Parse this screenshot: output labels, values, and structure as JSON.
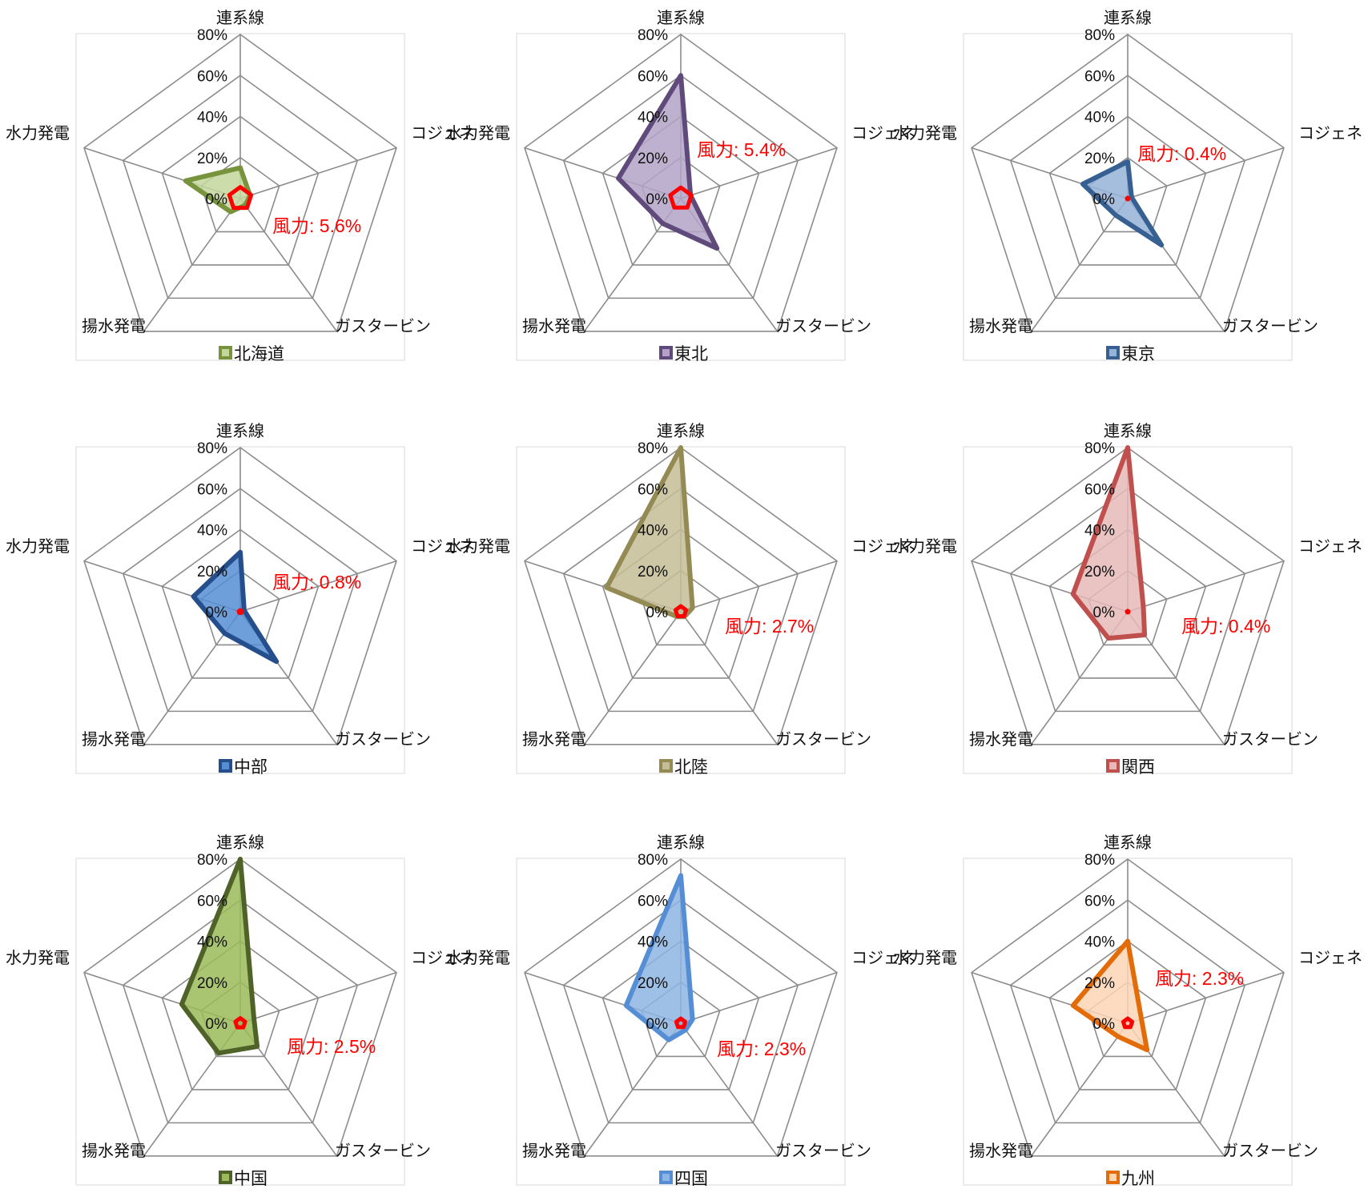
{
  "chart_data": [
    {
      "type": "radar",
      "axes": [
        "連系線",
        "コジェネ",
        "ガスタービン",
        "揚水発電",
        "水力発電"
      ],
      "ticks": [
        "0%",
        "20%",
        "40%",
        "60%",
        "80%"
      ],
      "rmax": 80,
      "legend_position": "bottom",
      "series": [
        {
          "name": "北海道",
          "values": [
            15,
            5,
            4,
            8,
            28
          ],
          "color": "#77933C",
          "fill": "#C3D69B"
        },
        {
          "name": "風力",
          "values": [
            5.6,
            5.6,
            5.6,
            5.6,
            5.6
          ],
          "color": "#FF0000"
        }
      ],
      "annotation": "風力: 5.6%"
    },
    {
      "type": "radar",
      "axes": [
        "連系線",
        "コジェネ",
        "ガスタービン",
        "揚水発電",
        "水力発電"
      ],
      "ticks": [
        "0%",
        "20%",
        "40%",
        "60%",
        "80%"
      ],
      "rmax": 80,
      "legend_position": "bottom",
      "series": [
        {
          "name": "東北",
          "values": [
            60,
            5,
            30,
            15,
            32
          ],
          "color": "#604A7B",
          "fill": "#B3A2C7"
        },
        {
          "name": "風力",
          "values": [
            5.4,
            5.4,
            5.4,
            5.4,
            5.4
          ],
          "color": "#FF0000"
        }
      ],
      "annotation": "風力: 5.4%"
    },
    {
      "type": "radar",
      "axes": [
        "連系線",
        "コジェネ",
        "ガスタービン",
        "揚水発電",
        "水力発電"
      ],
      "ticks": [
        "0%",
        "20%",
        "40%",
        "60%",
        "80%"
      ],
      "rmax": 80,
      "legend_position": "bottom",
      "series": [
        {
          "name": "東京",
          "values": [
            18,
            2,
            28,
            10,
            23
          ],
          "color": "#376092",
          "fill": "#95B3D7"
        },
        {
          "name": "風力",
          "values": [
            0.4,
            0.4,
            0.4,
            0.4,
            0.4
          ],
          "color": "#FF0000"
        }
      ],
      "annotation": "風力: 0.4%"
    },
    {
      "type": "radar",
      "axes": [
        "連系線",
        "コジェネ",
        "ガスタービン",
        "揚水発電",
        "水力発電"
      ],
      "ticks": [
        "0%",
        "20%",
        "40%",
        "60%",
        "80%"
      ],
      "rmax": 80,
      "legend_position": "bottom",
      "series": [
        {
          "name": "中部",
          "values": [
            29,
            2,
            30,
            13,
            24
          ],
          "color": "#254E8C",
          "fill": "#558ED5"
        },
        {
          "name": "風力",
          "values": [
            0.8,
            0.8,
            0.8,
            0.8,
            0.8
          ],
          "color": "#FF0000"
        }
      ],
      "annotation": "風力: 0.8%"
    },
    {
      "type": "radar",
      "axes": [
        "連系線",
        "コジェネ",
        "ガスタービン",
        "揚水発電",
        "水力発電"
      ],
      "ticks": [
        "0%",
        "20%",
        "40%",
        "60%",
        "80%"
      ],
      "rmax": 80,
      "legend_position": "bottom",
      "series": [
        {
          "name": "北陸",
          "values": [
            90,
            6,
            3,
            3,
            38
          ],
          "color": "#948A54",
          "fill": "#C4BD97"
        },
        {
          "name": "風力",
          "values": [
            2.7,
            2.7,
            2.7,
            2.7,
            2.7
          ],
          "color": "#FF0000"
        }
      ],
      "annotation": "風力: 2.7%"
    },
    {
      "type": "radar",
      "axes": [
        "連系線",
        "コジェネ",
        "ガスタービン",
        "揚水発電",
        "水力発電"
      ],
      "ticks": [
        "0%",
        "20%",
        "40%",
        "60%",
        "80%"
      ],
      "rmax": 80,
      "legend_position": "bottom",
      "series": [
        {
          "name": "関西",
          "values": [
            90,
            8,
            14,
            16,
            28
          ],
          "color": "#C0504D",
          "fill": "#E6B9B8"
        },
        {
          "name": "風力",
          "values": [
            0.4,
            0.4,
            0.4,
            0.4,
            0.4
          ],
          "color": "#FF0000"
        }
      ],
      "annotation": "風力: 0.4%"
    },
    {
      "type": "radar",
      "axes": [
        "連系線",
        "コジェネ",
        "ガスタービン",
        "揚水発電",
        "水力発電"
      ],
      "ticks": [
        "0%",
        "20%",
        "40%",
        "60%",
        "80%"
      ],
      "rmax": 80,
      "legend_position": "bottom",
      "series": [
        {
          "name": "中国",
          "values": [
            90,
            7,
            14,
            18,
            30
          ],
          "color": "#4F6228",
          "fill": "#9BBB59"
        },
        {
          "name": "風力",
          "values": [
            2.5,
            2.5,
            2.5,
            2.5,
            2.5
          ],
          "color": "#FF0000"
        }
      ],
      "annotation": "風力: 2.5%"
    },
    {
      "type": "radar",
      "axes": [
        "連系線",
        "コジェネ",
        "ガスタービン",
        "揚水発電",
        "水力発電"
      ],
      "ticks": [
        "0%",
        "20%",
        "40%",
        "60%",
        "80%"
      ],
      "rmax": 80,
      "legend_position": "bottom",
      "series": [
        {
          "name": "四国",
          "values": [
            72,
            6,
            4,
            10,
            28
          ],
          "color": "#558ED5",
          "fill": "#8DB4E2"
        },
        {
          "name": "風力",
          "values": [
            2.3,
            2.3,
            2.3,
            2.3,
            2.3
          ],
          "color": "#FF0000"
        }
      ],
      "annotation": "風力: 2.3%"
    },
    {
      "type": "radar",
      "axes": [
        "連系線",
        "コジェネ",
        "ガスタービン",
        "揚水発電",
        "水力発電"
      ],
      "ticks": [
        "0%",
        "20%",
        "40%",
        "60%",
        "80%"
      ],
      "rmax": 80,
      "legend_position": "bottom",
      "series": [
        {
          "name": "九州",
          "values": [
            40,
            7,
            16,
            8,
            28
          ],
          "color": "#E36C09",
          "fill": "#FCD5B5"
        },
        {
          "name": "風力",
          "values": [
            2.3,
            2.3,
            2.3,
            2.3,
            2.3
          ],
          "color": "#FF0000"
        }
      ],
      "annotation": "風力: 2.3%"
    }
  ]
}
